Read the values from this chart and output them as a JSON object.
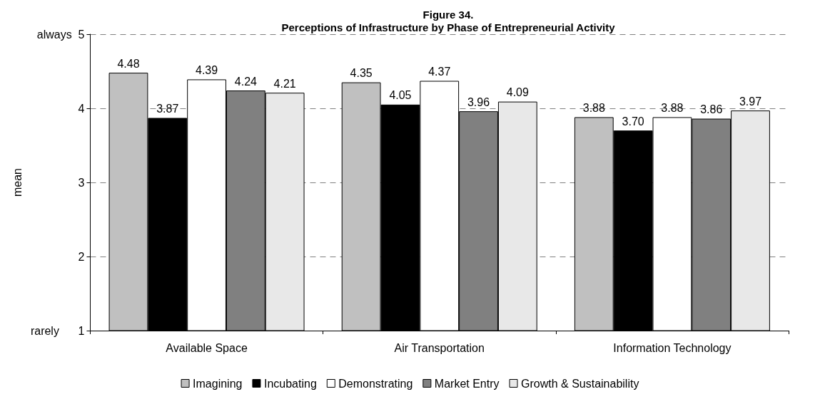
{
  "chart_data": {
    "type": "bar",
    "title": "Figure 34.",
    "subtitle": "Perceptions of Infrastructure by Phase of Entrepreneurial Activity",
    "ylabel": "mean",
    "categories": [
      "Available Space",
      "Air Transportation",
      "Information Technology"
    ],
    "series": [
      {
        "name": "Imagining",
        "color": "#c0c0c0",
        "values": [
          4.48,
          4.35,
          3.88
        ],
        "value_labels": [
          "4.48",
          "4.35",
          "3.88"
        ]
      },
      {
        "name": "Incubating",
        "color": "#000000",
        "values": [
          3.87,
          4.05,
          3.7
        ],
        "value_labels": [
          "3.87",
          "4.05",
          "3.70"
        ]
      },
      {
        "name": "Demonstrating",
        "color": "#ffffff",
        "values": [
          4.39,
          4.37,
          3.88
        ],
        "value_labels": [
          "4.39",
          "4.37",
          "3.88"
        ]
      },
      {
        "name": "Market Entry",
        "color": "#808080",
        "values": [
          4.24,
          3.96,
          3.86
        ],
        "value_labels": [
          "4.24",
          "3.96",
          "3.86"
        ]
      },
      {
        "name": "Growth & Sustainability",
        "color": "#e8e8e8",
        "values": [
          4.21,
          4.09,
          3.97
        ],
        "value_labels": [
          "4.21",
          "4.09",
          "3.97"
        ]
      }
    ],
    "ylim": [
      1,
      5
    ],
    "yticks": [
      {
        "value": 1,
        "label": "rarely      1"
      },
      2,
      3,
      4,
      {
        "value": 5,
        "label": "always  5"
      }
    ],
    "grid": "y",
    "legend": "bottom"
  }
}
